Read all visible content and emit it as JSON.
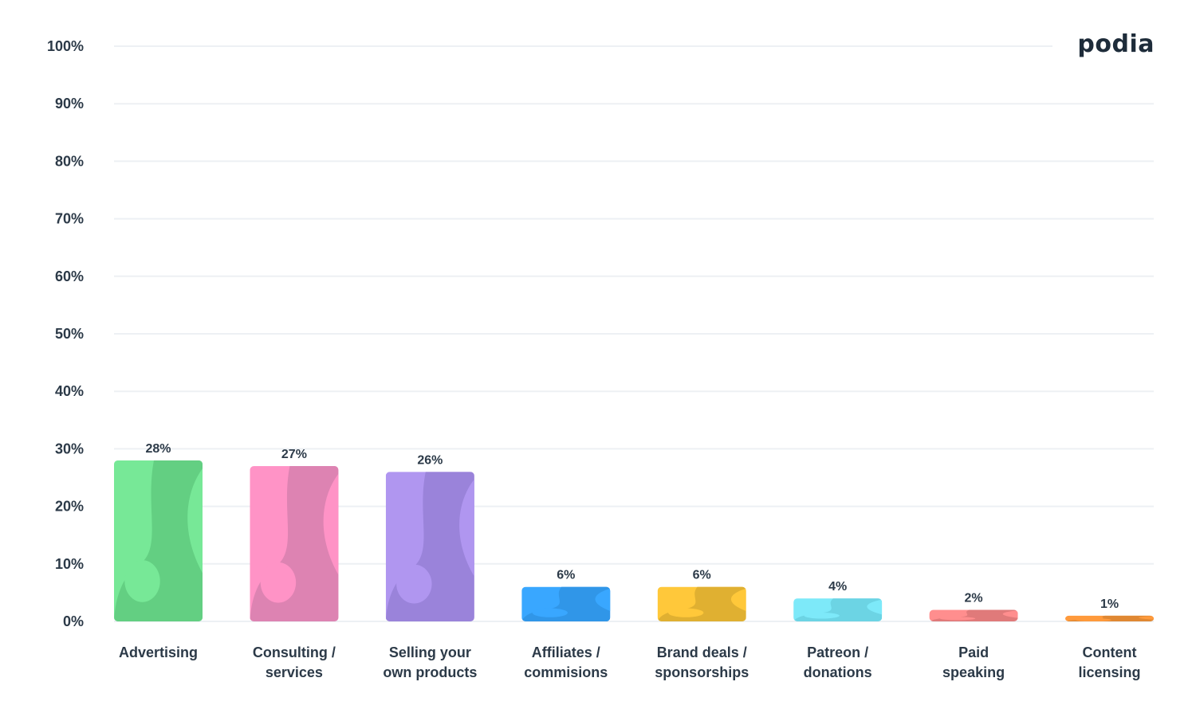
{
  "brand": {
    "logo_text": "podia"
  },
  "chart_data": {
    "type": "bar",
    "categories": [
      [
        "Advertising"
      ],
      [
        "Consulting /",
        "services"
      ],
      [
        "Selling your",
        "own products"
      ],
      [
        "Affiliates /",
        "commisions"
      ],
      [
        "Brand deals /",
        "sponsorships"
      ],
      [
        "Patreon /",
        "donations"
      ],
      [
        "Paid",
        "speaking"
      ],
      [
        "Content",
        "licensing"
      ]
    ],
    "values": [
      28,
      27,
      26,
      6,
      6,
      4,
      2,
      1
    ],
    "value_labels": [
      "28%",
      "27%",
      "26%",
      "6%",
      "6%",
      "4%",
      "2%",
      "1%"
    ],
    "colors": [
      "#77e897",
      "#ff93c6",
      "#b096f0",
      "#39a7ff",
      "#ffc83a",
      "#7de9f9",
      "#ff8e8e",
      "#ff9a3c"
    ],
    "shade_colors": [
      "#63cf82",
      "#dd83b2",
      "#9a83da",
      "#3096e8",
      "#e0b031",
      "#6cd4e4",
      "#e07a7a",
      "#e08833"
    ],
    "ylim": [
      0,
      100
    ],
    "yticks": [
      0,
      10,
      20,
      30,
      40,
      50,
      60,
      70,
      80,
      90,
      100
    ],
    "ytick_labels": [
      "0%",
      "10%",
      "20%",
      "30%",
      "40%",
      "50%",
      "60%",
      "70%",
      "80%",
      "90%",
      "100%"
    ],
    "grid": true,
    "title": "",
    "xlabel": "",
    "ylabel": ""
  }
}
